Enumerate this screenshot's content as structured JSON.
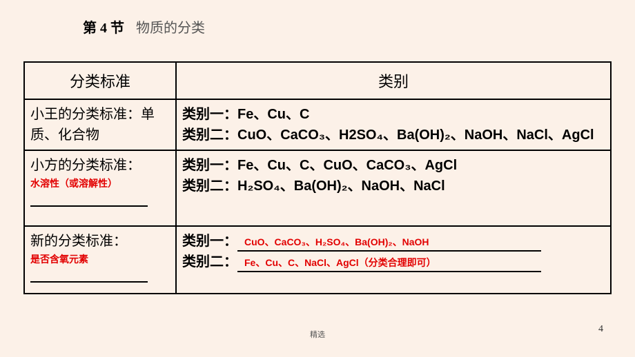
{
  "header": {
    "section_label": "第 4 节",
    "section_title": "物质的分类"
  },
  "table": {
    "headers": {
      "criteria": "分类标准",
      "category": "类别"
    },
    "rows": [
      {
        "criteria_text": "小王的分类标准：单质、化合物",
        "criteria_answer": "",
        "show_blank": false,
        "cat1_label": "类别一：",
        "cat1_value": "Fe、Cu、C",
        "cat2_label": "类别二：",
        "cat2_value": "CuO、CaCO₃、H2SO₄、Ba(OH)₂、NaOH、NaCl、AgCl",
        "cat_answer1": "",
        "cat_answer2": ""
      },
      {
        "criteria_text": "小方的分类标准：",
        "criteria_answer": "水溶性（或溶解性）",
        "show_blank": true,
        "cat1_label": " 类别一：",
        "cat1_value": "Fe、Cu、C、CuO、CaCO₃、AgCl",
        "cat2_label": "类别二：",
        "cat2_value": "H₂SO₄、Ba(OH)₂、NaOH、NaCl",
        "cat_answer1": "",
        "cat_answer2": ""
      },
      {
        "criteria_text": "新的分类标准：",
        "criteria_answer": "是否含氧元素",
        "show_blank": true,
        "cat1_label": "类别一：",
        "cat1_value": "",
        "cat2_label": "类别二：",
        "cat2_value": "",
        "cat_answer1": "CuO、CaCO₃、H₂SO₄、Ba(OH)₂、NaOH",
        "cat_answer2": "Fe、Cu、C、NaCl、AgCl（分类合理即可）"
      }
    ]
  },
  "footer": {
    "sel": "精选",
    "page": "4"
  }
}
